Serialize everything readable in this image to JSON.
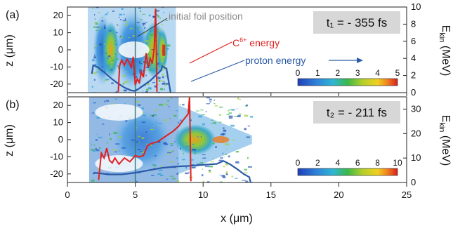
{
  "chart_data": {
    "type": "heatmap",
    "x_axis": {
      "label": "x (μm)",
      "range": [
        0,
        25
      ],
      "ticks": [
        0,
        5,
        10,
        15,
        20,
        25
      ]
    },
    "panels": [
      {
        "id": "a",
        "letter": "(a)",
        "time_label": "t₁ = - 355 fs",
        "z_axis": {
          "label": "z (μm)",
          "range": [
            -25,
            25
          ],
          "ticks": [
            20,
            10,
            0,
            -10,
            -20
          ]
        },
        "ekin_axis": {
          "label_main": "E",
          "label_sub": "kin",
          "label_unit": " (MeV)",
          "range": [
            0,
            10
          ],
          "ticks": [
            0,
            2,
            4,
            6,
            8,
            10
          ]
        },
        "colorbar": {
          "ticks": [
            0,
            1,
            2,
            3,
            4,
            5
          ],
          "range": [
            0,
            5
          ]
        },
        "foil_position_x": 5,
        "annotations": {
          "foil": "initial foil position",
          "carbon_prefix": "C",
          "carbon_sup": "6+",
          "carbon_suffix": " energy",
          "proton": "proton energy"
        },
        "proton_energy_curve": {
          "x": [
            1.8,
            1.9,
            2.2,
            2.7,
            3.2,
            3.7,
            4.2,
            4.7,
            5.0,
            5.3,
            5.7,
            6.1,
            6.5,
            6.9,
            7.0,
            7.3,
            7.6
          ],
          "y": [
            2.2,
            3.2,
            3.0,
            2.4,
            1.7,
            1.1,
            0.6,
            0.25,
            0.2,
            0.5,
            0.95,
            1.4,
            2.0,
            2.6,
            3.1,
            2.8,
            0.05
          ]
        },
        "carbon_energy_curve": {
          "x": [
            3.75,
            3.85,
            4.0,
            4.2,
            4.4,
            4.55,
            4.7,
            4.85,
            5.0,
            5.15,
            5.3,
            5.45,
            5.6,
            5.8,
            5.95,
            6.1,
            6.25,
            6.4,
            6.5,
            6.6
          ],
          "y": [
            0.1,
            3.2,
            3.8,
            3.2,
            3.9,
            3.5,
            3.0,
            4.2,
            0.9,
            1.6,
            1.2,
            2.4,
            1.8,
            4.6,
            2.9,
            4.0,
            3.4,
            5.2,
            9.8,
            0.1
          ]
        }
      },
      {
        "id": "b",
        "letter": "(b)",
        "time_label": "t₂ = - 211 fs",
        "z_axis": {
          "label": "z (μm)",
          "range": [
            -25,
            25
          ],
          "ticks": [
            20,
            10,
            0,
            -10,
            -20
          ]
        },
        "ekin_axis": {
          "label_main": "E",
          "label_sub": "kin",
          "label_unit": " (MeV)",
          "range": [
            0,
            35
          ],
          "ticks": [
            0,
            10,
            20,
            30
          ]
        },
        "colorbar": {
          "ticks": [
            0,
            2,
            4,
            6,
            8,
            10
          ],
          "range": [
            0,
            10
          ]
        },
        "foil_position_x": 5,
        "proton_energy_curve": {
          "x": [
            1.9,
            2.0,
            2.5,
            3.0,
            4.0,
            5.0,
            6.0,
            7.0,
            8.0,
            9.0,
            10.0,
            11.0,
            11.5,
            12.0,
            12.5,
            13.0,
            13.4,
            13.5
          ],
          "y": [
            3.5,
            4.0,
            3.7,
            3.3,
            3.3,
            4.0,
            5.0,
            6.0,
            6.5,
            6.8,
            7.2,
            7.6,
            8.8,
            7.4,
            5.5,
            3.4,
            2.2,
            0.1
          ]
        },
        "carbon_energy_curve": {
          "x": [
            2.3,
            2.5,
            2.7,
            2.9,
            3.1,
            3.3,
            3.5,
            3.8,
            4.2,
            4.6,
            5.0,
            5.3,
            5.6,
            5.9,
            6.2,
            6.6,
            7.0,
            7.4,
            7.8,
            8.2,
            8.6,
            8.9,
            9.0,
            9.1
          ],
          "y": [
            1,
            12,
            10,
            14,
            9,
            8,
            10,
            7.5,
            10,
            8.5,
            11,
            10.5,
            11,
            15,
            16,
            16.5,
            18,
            19.5,
            21,
            23,
            26,
            28,
            35,
            0.5
          ]
        }
      }
    ]
  }
}
